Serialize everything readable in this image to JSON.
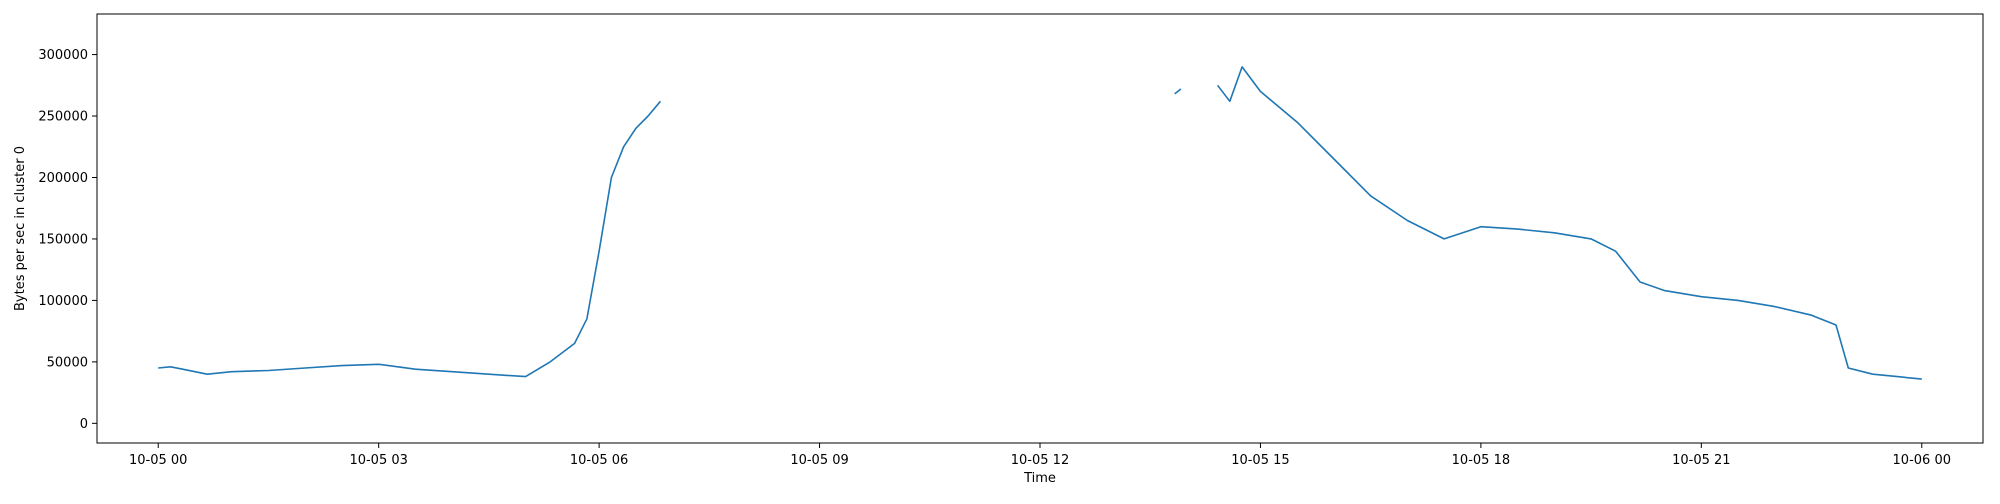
{
  "chart_data": {
    "type": "line",
    "title": "",
    "xlabel": "Time",
    "ylabel": "Bytes per sec in cluster 0",
    "x_unit": "datetime",
    "xlim": [
      "2023-10-04 23:10",
      "2023-10-06 00:50"
    ],
    "ylim": [
      -16000,
      333000
    ],
    "x_tick_labels": [
      "10-05 00",
      "10-05 03",
      "10-05 06",
      "10-05 09",
      "10-05 12",
      "10-05 15",
      "10-05 18",
      "10-05 21",
      "10-06 00"
    ],
    "x_tick_values": [
      "2023-10-05 00:00",
      "2023-10-05 03:00",
      "2023-10-05 06:00",
      "2023-10-05 09:00",
      "2023-10-05 12:00",
      "2023-10-05 15:00",
      "2023-10-05 18:00",
      "2023-10-05 21:00",
      "2023-10-06 00:00"
    ],
    "y_ticks": [
      0,
      50000,
      100000,
      150000,
      200000,
      250000,
      300000
    ],
    "y_tick_labels": [
      "0",
      "50000",
      "100000",
      "150000",
      "200000",
      "250000",
      "300000"
    ],
    "grid": false,
    "legend": false,
    "series_color": "#1f77b4",
    "series": [
      {
        "segments": [
          {
            "x": [
              "2023-10-05 00:00",
              "2023-10-05 00:10",
              "2023-10-05 00:20",
              "2023-10-05 00:30",
              "2023-10-05 00:40",
              "2023-10-05 01:00",
              "2023-10-05 01:30",
              "2023-10-05 02:00",
              "2023-10-05 02:30",
              "2023-10-05 03:00",
              "2023-10-05 03:30",
              "2023-10-05 04:00",
              "2023-10-05 04:30",
              "2023-10-05 05:00",
              "2023-10-05 05:20",
              "2023-10-05 05:40",
              "2023-10-05 05:50",
              "2023-10-05 06:00",
              "2023-10-05 06:10",
              "2023-10-05 06:20",
              "2023-10-05 06:30",
              "2023-10-05 06:40",
              "2023-10-05 06:50"
            ],
            "y": [
              45000,
              46000,
              44000,
              42000,
              40000,
              42000,
              43000,
              45000,
              47000,
              48000,
              44000,
              42000,
              40000,
              38000,
              50000,
              65000,
              85000,
              140000,
              200000,
              225000,
              240000,
              250000,
              262000
            ]
          },
          {
            "x": [
              "2023-10-05 13:50",
              "2023-10-05 13:55"
            ],
            "y": [
              268000,
              272000
            ]
          },
          {
            "x": [
              "2023-10-05 14:25",
              "2023-10-05 14:35",
              "2023-10-05 14:45",
              "2023-10-05 15:00",
              "2023-10-05 15:30",
              "2023-10-05 16:00",
              "2023-10-05 16:30",
              "2023-10-05 17:00",
              "2023-10-05 17:30",
              "2023-10-05 18:00",
              "2023-10-05 18:30",
              "2023-10-05 19:00",
              "2023-10-05 19:30",
              "2023-10-05 19:50",
              "2023-10-05 20:10",
              "2023-10-05 20:30",
              "2023-10-05 21:00",
              "2023-10-05 21:30",
              "2023-10-05 22:00",
              "2023-10-05 22:30",
              "2023-10-05 22:50",
              "2023-10-05 23:00",
              "2023-10-05 23:20",
              "2023-10-05 23:40",
              "2023-10-06 00:00"
            ],
            "y": [
              275000,
              262000,
              290000,
              270000,
              245000,
              215000,
              185000,
              165000,
              150000,
              160000,
              158000,
              155000,
              150000,
              140000,
              115000,
              108000,
              103000,
              100000,
              95000,
              88000,
              80000,
              45000,
              40000,
              38000,
              36000
            ]
          }
        ]
      }
    ]
  }
}
